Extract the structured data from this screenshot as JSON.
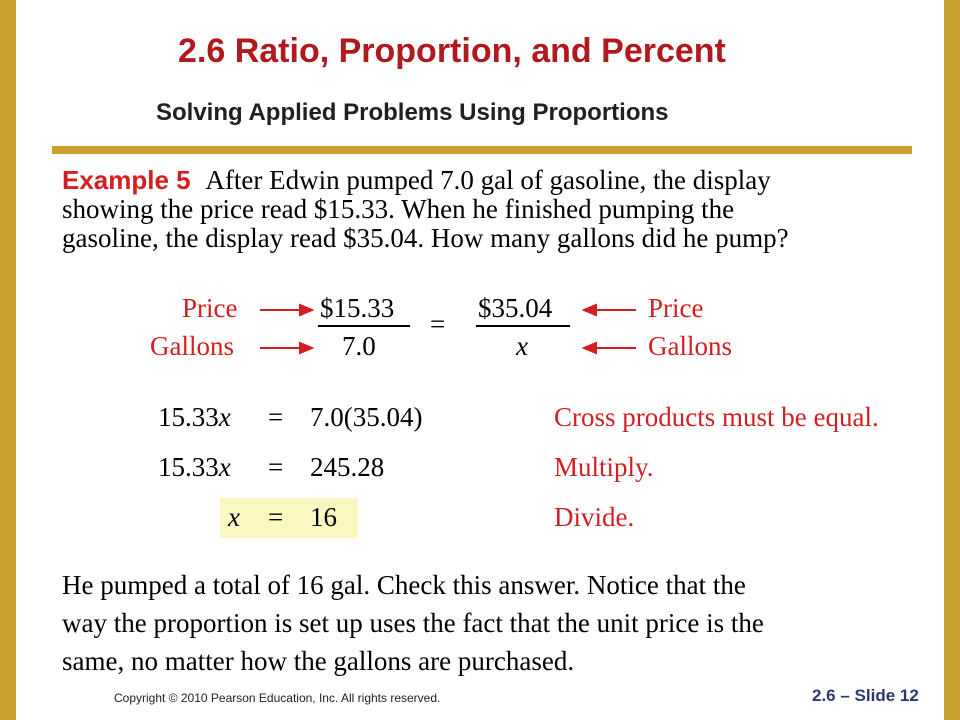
{
  "slide": {
    "title": "2.6 Ratio, Proportion, and Percent",
    "subtitle": "Solving Applied Problems Using  Proportions"
  },
  "example": {
    "label": "Example 5",
    "line1": "After Edwin pumped 7.0 gal of gasoline, the display",
    "line2": "showing the price read $15.33. When he finished pumping the",
    "line3": "gasoline, the display read $35.04. How many gallons did he pump?"
  },
  "proportion": {
    "left_top_label": "Price",
    "left_bottom_label": "Gallons",
    "frac1_num": "$15.33",
    "frac1_den": "7.0",
    "equals": "=",
    "frac2_num": "$35.04",
    "frac2_den": "x",
    "right_top_label": "Price",
    "right_bottom_label": "Gallons"
  },
  "steps": [
    {
      "lhs_num": "15.33",
      "lhs_var": "x",
      "eq": "=",
      "rhs": "7.0(35.04)",
      "note": "Cross products must be equal."
    },
    {
      "lhs_num": "15.33",
      "lhs_var": "x",
      "eq": "=",
      "rhs": "245.28",
      "note": "Multiply."
    },
    {
      "lhs_num": "",
      "lhs_var": "x",
      "eq": "=",
      "rhs": "16",
      "note": "Divide."
    }
  ],
  "conclusion": {
    "line1": "He pumped a total of 16 gal. Check this answer. Notice that the",
    "line2": "way the proportion is set up uses the fact that the unit price is the",
    "line3": "same, no matter how the gallons are purchased."
  },
  "footer": {
    "copyright": "Copyright © 2010 Pearson Education, Inc. All rights reserved.",
    "slide_number": "2.6 – Slide 12"
  },
  "colors": {
    "title": "#b01a1f",
    "accent_rule": "#c9a030",
    "annotation_red": "#d41f20",
    "highlight": "#fbf7c2",
    "footer_blue": "#2a3a6c"
  }
}
